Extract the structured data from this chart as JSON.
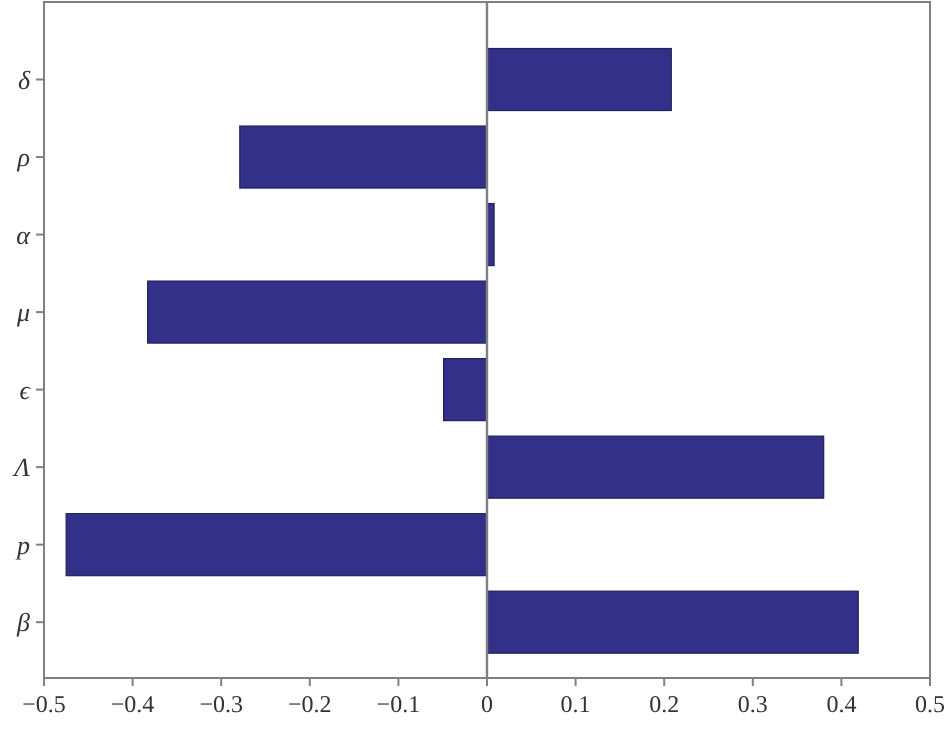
{
  "chart_data": {
    "type": "bar",
    "orientation": "horizontal",
    "categories": [
      "δ",
      "ρ",
      "α",
      "μ",
      "ϵ",
      "Λ",
      "p",
      "β"
    ],
    "values": [
      0.208,
      -0.279,
      0.008,
      -0.383,
      -0.049,
      0.38,
      -0.475,
      0.419
    ],
    "color": "#33308a",
    "xlim": [
      -0.5,
      0.5
    ],
    "xticks": [
      {
        "value": -0.5,
        "label": "−0.5"
      },
      {
        "value": -0.4,
        "label": "−0.4"
      },
      {
        "value": -0.3,
        "label": "−0.3"
      },
      {
        "value": -0.2,
        "label": "−0.2"
      },
      {
        "value": -0.1,
        "label": "−0.1"
      },
      0,
      0.1,
      0.2,
      0.3,
      0.4,
      0.5
    ],
    "ref_lines": [
      {
        "axis": "x",
        "value": 0,
        "color": "#808080"
      }
    ],
    "grid": false
  }
}
